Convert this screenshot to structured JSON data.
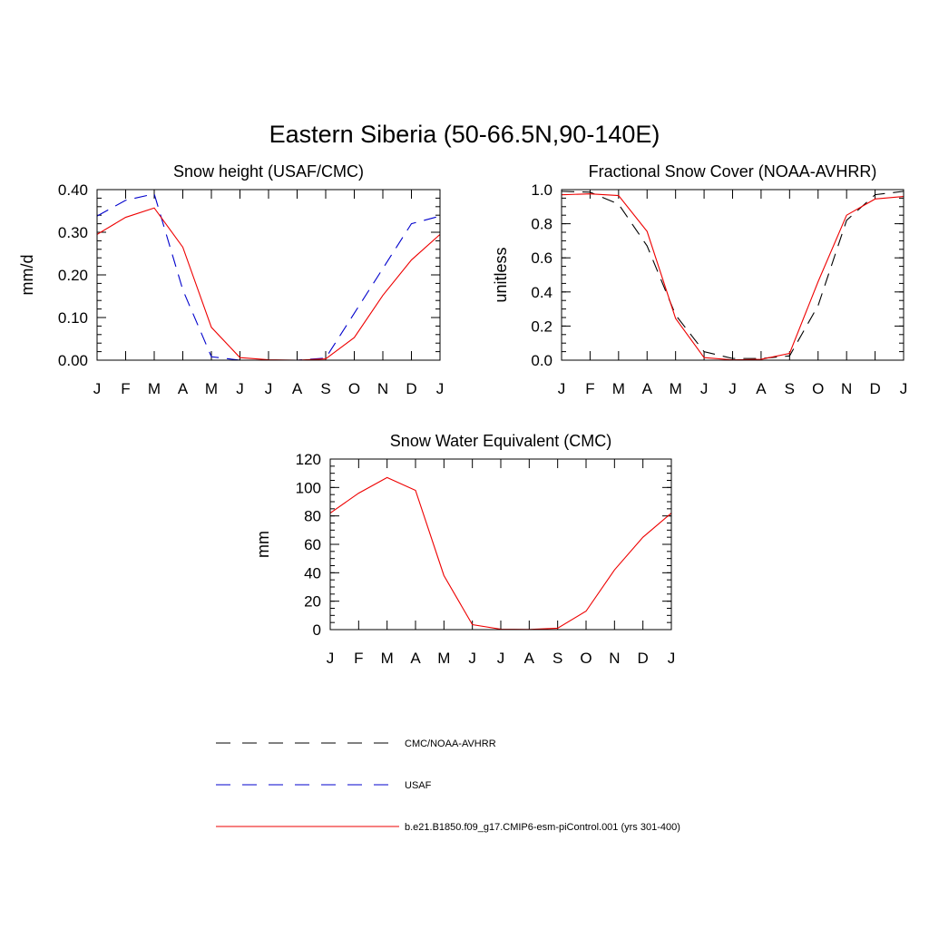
{
  "title": "Eastern Siberia (50-66.5N,90-140E)",
  "colors": {
    "obs": "#000000",
    "usaf": "#0000cc",
    "model": "#ee0000"
  },
  "legend": [
    {
      "key": "obs",
      "label": "CMC/NOAA-AVHRR",
      "style": "dashed"
    },
    {
      "key": "usaf",
      "label": "USAF",
      "style": "dashed"
    },
    {
      "key": "model",
      "label": "b.e21.B1850.f09_g17.CMIP6-esm-piControl.001 (yrs 301-400)",
      "style": "solid"
    }
  ],
  "chart_data": [
    {
      "type": "line",
      "title": "Snow height (USAF/CMC)",
      "xlabel": "",
      "ylabel": "mm/d",
      "categories": [
        "J",
        "F",
        "M",
        "A",
        "M",
        "J",
        "J",
        "A",
        "S",
        "O",
        "N",
        "D",
        "J"
      ],
      "ylim": [
        0,
        0.4
      ],
      "yticks": [
        "0.00",
        "0.10",
        "0.20",
        "0.30",
        "0.40"
      ],
      "yminor": 0.02,
      "series": [
        {
          "name": "CMC/NOAA-AVHRR",
          "key": "obs",
          "style": "dashed",
          "values": [
            0,
            0,
            0,
            0,
            0,
            0,
            0,
            0,
            0,
            0,
            0,
            0,
            0
          ]
        },
        {
          "name": "USAF",
          "key": "usaf",
          "style": "dashed",
          "values": [
            0.338,
            0.375,
            0.39,
            0.165,
            0.008,
            0.0,
            0.0,
            0.0,
            0.005,
            0.11,
            0.215,
            0.32,
            0.338
          ]
        },
        {
          "name": "b.e21.B1850.f09_g17.CMIP6-esm-piControl.001 (yrs 301-400)",
          "key": "model",
          "style": "solid",
          "values": [
            0.295,
            0.335,
            0.357,
            0.265,
            0.077,
            0.006,
            0.001,
            0.0,
            0.003,
            0.053,
            0.152,
            0.235,
            0.295
          ]
        }
      ]
    },
    {
      "type": "line",
      "title": "Fractional Snow Cover (NOAA-AVHRR)",
      "xlabel": "",
      "ylabel": "unitless",
      "categories": [
        "J",
        "F",
        "M",
        "A",
        "M",
        "J",
        "J",
        "A",
        "S",
        "O",
        "N",
        "D",
        "J"
      ],
      "ylim": [
        0,
        1.0
      ],
      "yticks": [
        "0.0",
        "0.2",
        "0.4",
        "0.6",
        "0.8",
        "1.0"
      ],
      "yminor": 0.05,
      "series": [
        {
          "name": "CMC/NOAA-AVHRR",
          "key": "obs",
          "style": "dashed",
          "values": [
            0.99,
            0.985,
            0.915,
            0.67,
            0.265,
            0.05,
            0.01,
            0.01,
            0.025,
            0.32,
            0.82,
            0.97,
            0.99
          ]
        },
        {
          "name": "b.e21.B1850.f09_g17.CMIP6-esm-piControl.001 (yrs 301-400)",
          "key": "model",
          "style": "solid",
          "values": [
            0.97,
            0.975,
            0.965,
            0.755,
            0.245,
            0.015,
            0.002,
            0.005,
            0.04,
            0.46,
            0.85,
            0.945,
            0.96
          ]
        }
      ]
    },
    {
      "type": "line",
      "title": "Snow Water Equivalent (CMC)",
      "xlabel": "",
      "ylabel": "mm",
      "categories": [
        "J",
        "F",
        "M",
        "A",
        "M",
        "J",
        "J",
        "A",
        "S",
        "O",
        "N",
        "D",
        "J"
      ],
      "ylim": [
        0,
        120
      ],
      "yticks": [
        "0",
        "20",
        "40",
        "60",
        "80",
        "100",
        "120"
      ],
      "yminor": 5,
      "series": [
        {
          "name": "CMC/NOAA-AVHRR",
          "key": "obs",
          "style": "dashed",
          "values": [
            0,
            0,
            0,
            0,
            0,
            0,
            0,
            0,
            0,
            0,
            0,
            0,
            0
          ]
        },
        {
          "name": "b.e21.B1850.f09_g17.CMIP6-esm-piControl.001 (yrs 301-400)",
          "key": "model",
          "style": "solid",
          "values": [
            82,
            96,
            107,
            98,
            38,
            3.5,
            0.3,
            0.1,
            1.0,
            13,
            42,
            65,
            82
          ]
        }
      ]
    }
  ]
}
